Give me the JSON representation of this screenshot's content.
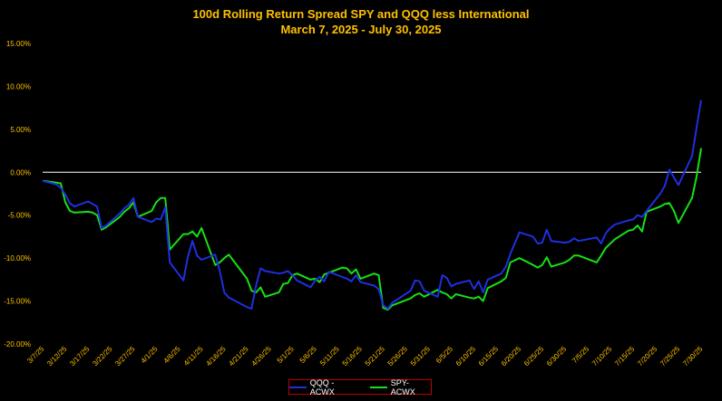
{
  "chart_data": {
    "type": "line",
    "title": "100d Rolling Return Spread SPY and QQQ less International",
    "subtitle": "March 7, 2025 - July 30, 2025",
    "xlabel": "",
    "ylabel": "",
    "ylim": [
      -0.2,
      0.15
    ],
    "yticks": [
      0.15,
      0.1,
      0.05,
      0.0,
      -0.05,
      -0.1,
      -0.15,
      -0.2
    ],
    "ytick_labels": [
      "15.00%",
      "10.00%",
      "5.00%",
      "0.00%",
      "-5.00%",
      "-10.00%",
      "-15.00%",
      "-20.00%"
    ],
    "x": [
      "3/7/25",
      "3/10/25",
      "3/11/25",
      "3/12/25",
      "3/13/25",
      "3/14/25",
      "3/17/25",
      "3/18/25",
      "3/19/25",
      "3/20/25",
      "3/21/25",
      "3/24/25",
      "3/25/25",
      "3/26/25",
      "3/27/25",
      "3/28/25",
      "3/31/25",
      "4/1/25",
      "4/2/25",
      "4/3/25",
      "4/4/25",
      "4/7/25",
      "4/8/25",
      "4/9/25",
      "4/10/25",
      "4/11/25",
      "4/14/25",
      "4/15/25",
      "4/16/25",
      "4/17/25",
      "4/21/25",
      "4/22/25",
      "4/23/25",
      "4/24/25",
      "4/25/25",
      "4/28/25",
      "4/29/25",
      "4/30/25",
      "5/1/25",
      "5/2/25",
      "5/5/25",
      "5/6/25",
      "5/7/25",
      "5/8/25",
      "5/9/25",
      "5/12/25",
      "5/13/25",
      "5/14/25",
      "5/15/25",
      "5/16/25",
      "5/19/25",
      "5/20/25",
      "5/21/25",
      "5/22/25",
      "5/23/25",
      "5/27/25",
      "5/28/25",
      "5/29/25",
      "5/30/25",
      "6/2/25",
      "6/3/25",
      "6/4/25",
      "6/5/25",
      "6/6/25",
      "6/9/25",
      "6/10/25",
      "6/11/25",
      "6/12/25",
      "6/13/25",
      "6/16/25",
      "6/17/25",
      "6/18/25",
      "6/20/25",
      "6/23/25",
      "6/24/25",
      "6/25/25",
      "6/26/25",
      "6/27/25",
      "6/30/25",
      "7/1/25",
      "7/2/25",
      "7/3/25",
      "7/7/25",
      "7/8/25",
      "7/9/25",
      "7/10/25",
      "7/11/25",
      "7/14/25",
      "7/15/25",
      "7/16/25",
      "7/17/25",
      "7/18/25",
      "7/21/25",
      "7/22/25",
      "7/23/25",
      "7/24/25",
      "7/25/25",
      "7/28/25",
      "7/29/25",
      "7/30/25"
    ],
    "xtick_labels": [
      "3/7/25",
      "3/12/25",
      "3/17/25",
      "3/22/25",
      "3/27/25",
      "4/1/25",
      "4/6/25",
      "4/11/25",
      "4/16/25",
      "4/21/25",
      "4/26/25",
      "5/1/25",
      "5/6/25",
      "5/11/25",
      "5/16/25",
      "5/21/25",
      "5/26/25",
      "5/31/25",
      "6/5/25",
      "6/10/25",
      "6/15/25",
      "6/20/25",
      "6/25/25",
      "6/30/25",
      "7/5/25",
      "7/10/25",
      "7/15/25",
      "7/20/25",
      "7/25/25",
      "7/30/25"
    ],
    "series": [
      {
        "name": "QQQ - ACWX",
        "color": "#1F2FE0",
        "values": [
          -0.01,
          -0.014,
          -0.018,
          -0.026,
          -0.036,
          -0.04,
          -0.034,
          -0.037,
          -0.04,
          -0.065,
          -0.062,
          -0.048,
          -0.042,
          -0.038,
          -0.03,
          -0.052,
          -0.058,
          -0.054,
          -0.055,
          -0.041,
          -0.105,
          -0.126,
          -0.098,
          -0.08,
          -0.097,
          -0.102,
          -0.096,
          -0.115,
          -0.14,
          -0.146,
          -0.157,
          -0.159,
          -0.132,
          -0.112,
          -0.115,
          -0.118,
          -0.117,
          -0.115,
          -0.12,
          -0.126,
          -0.134,
          -0.126,
          -0.122,
          -0.127,
          -0.116,
          -0.122,
          -0.124,
          -0.127,
          -0.12,
          -0.128,
          -0.132,
          -0.136,
          -0.155,
          -0.159,
          -0.152,
          -0.138,
          -0.126,
          -0.127,
          -0.138,
          -0.145,
          -0.12,
          -0.123,
          -0.133,
          -0.13,
          -0.126,
          -0.136,
          -0.127,
          -0.14,
          -0.125,
          -0.118,
          -0.11,
          -0.095,
          -0.07,
          -0.075,
          -0.083,
          -0.082,
          -0.067,
          -0.08,
          -0.082,
          -0.081,
          -0.077,
          -0.08,
          -0.076,
          -0.083,
          -0.071,
          -0.065,
          -0.061,
          -0.056,
          -0.055,
          -0.05,
          -0.052,
          -0.045,
          -0.025,
          -0.016,
          0.003,
          -0.006,
          -0.015,
          0.019,
          0.052,
          0.084
        ]
      },
      {
        "name": "SPY-ACWX",
        "color": "#16E016",
        "values": [
          -0.01,
          -0.012,
          -0.013,
          -0.035,
          -0.045,
          -0.047,
          -0.046,
          -0.047,
          -0.05,
          -0.067,
          -0.064,
          -0.052,
          -0.046,
          -0.042,
          -0.035,
          -0.052,
          -0.045,
          -0.035,
          -0.03,
          -0.03,
          -0.09,
          -0.072,
          -0.072,
          -0.069,
          -0.075,
          -0.065,
          -0.108,
          -0.105,
          -0.1,
          -0.096,
          -0.124,
          -0.138,
          -0.14,
          -0.134,
          -0.145,
          -0.14,
          -0.13,
          -0.129,
          -0.12,
          -0.118,
          -0.125,
          -0.124,
          -0.128,
          -0.119,
          -0.117,
          -0.111,
          -0.112,
          -0.118,
          -0.113,
          -0.124,
          -0.118,
          -0.12,
          -0.158,
          -0.16,
          -0.155,
          -0.147,
          -0.143,
          -0.141,
          -0.145,
          -0.137,
          -0.14,
          -0.142,
          -0.147,
          -0.142,
          -0.146,
          -0.147,
          -0.145,
          -0.15,
          -0.135,
          -0.127,
          -0.123,
          -0.105,
          -0.1,
          -0.108,
          -0.111,
          -0.108,
          -0.099,
          -0.11,
          -0.105,
          -0.102,
          -0.097,
          -0.097,
          -0.105,
          -0.097,
          -0.088,
          -0.083,
          -0.078,
          -0.068,
          -0.067,
          -0.062,
          -0.069,
          -0.046,
          -0.04,
          -0.037,
          -0.036,
          -0.045,
          -0.059,
          -0.03,
          -0.005,
          0.028
        ]
      }
    ],
    "legend": {
      "position": "bottom",
      "border_color": "#C00000"
    },
    "colors": {
      "background": "#000000",
      "title": "#FFC000",
      "tick_labels": "#FFC000",
      "zero_line": "#FFFFFF",
      "legend_text": "#FFFFFF"
    },
    "grid": false
  }
}
